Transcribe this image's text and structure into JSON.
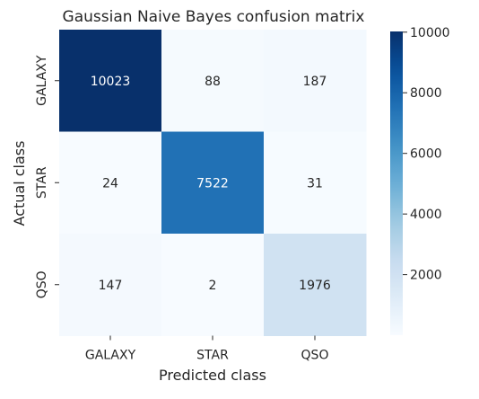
{
  "chart_data": {
    "type": "heatmap",
    "title": "Gaussian Naive Bayes confusion matrix",
    "xlabel": "Predicted class",
    "ylabel": "Actual class",
    "x_categories": [
      "GALAXY",
      "STAR",
      "QSO"
    ],
    "y_categories": [
      "GALAXY",
      "STAR",
      "QSO"
    ],
    "values": [
      [
        10023,
        88,
        187
      ],
      [
        24,
        7522,
        31
      ],
      [
        147,
        2,
        1976
      ]
    ],
    "colormap": "Blues",
    "colorbar": {
      "min": 2,
      "max": 10023,
      "ticks": [
        2000,
        4000,
        6000,
        8000,
        10000
      ]
    },
    "cell_text_colors": {
      "dark": "#ffffff",
      "light": "#262626"
    }
  }
}
